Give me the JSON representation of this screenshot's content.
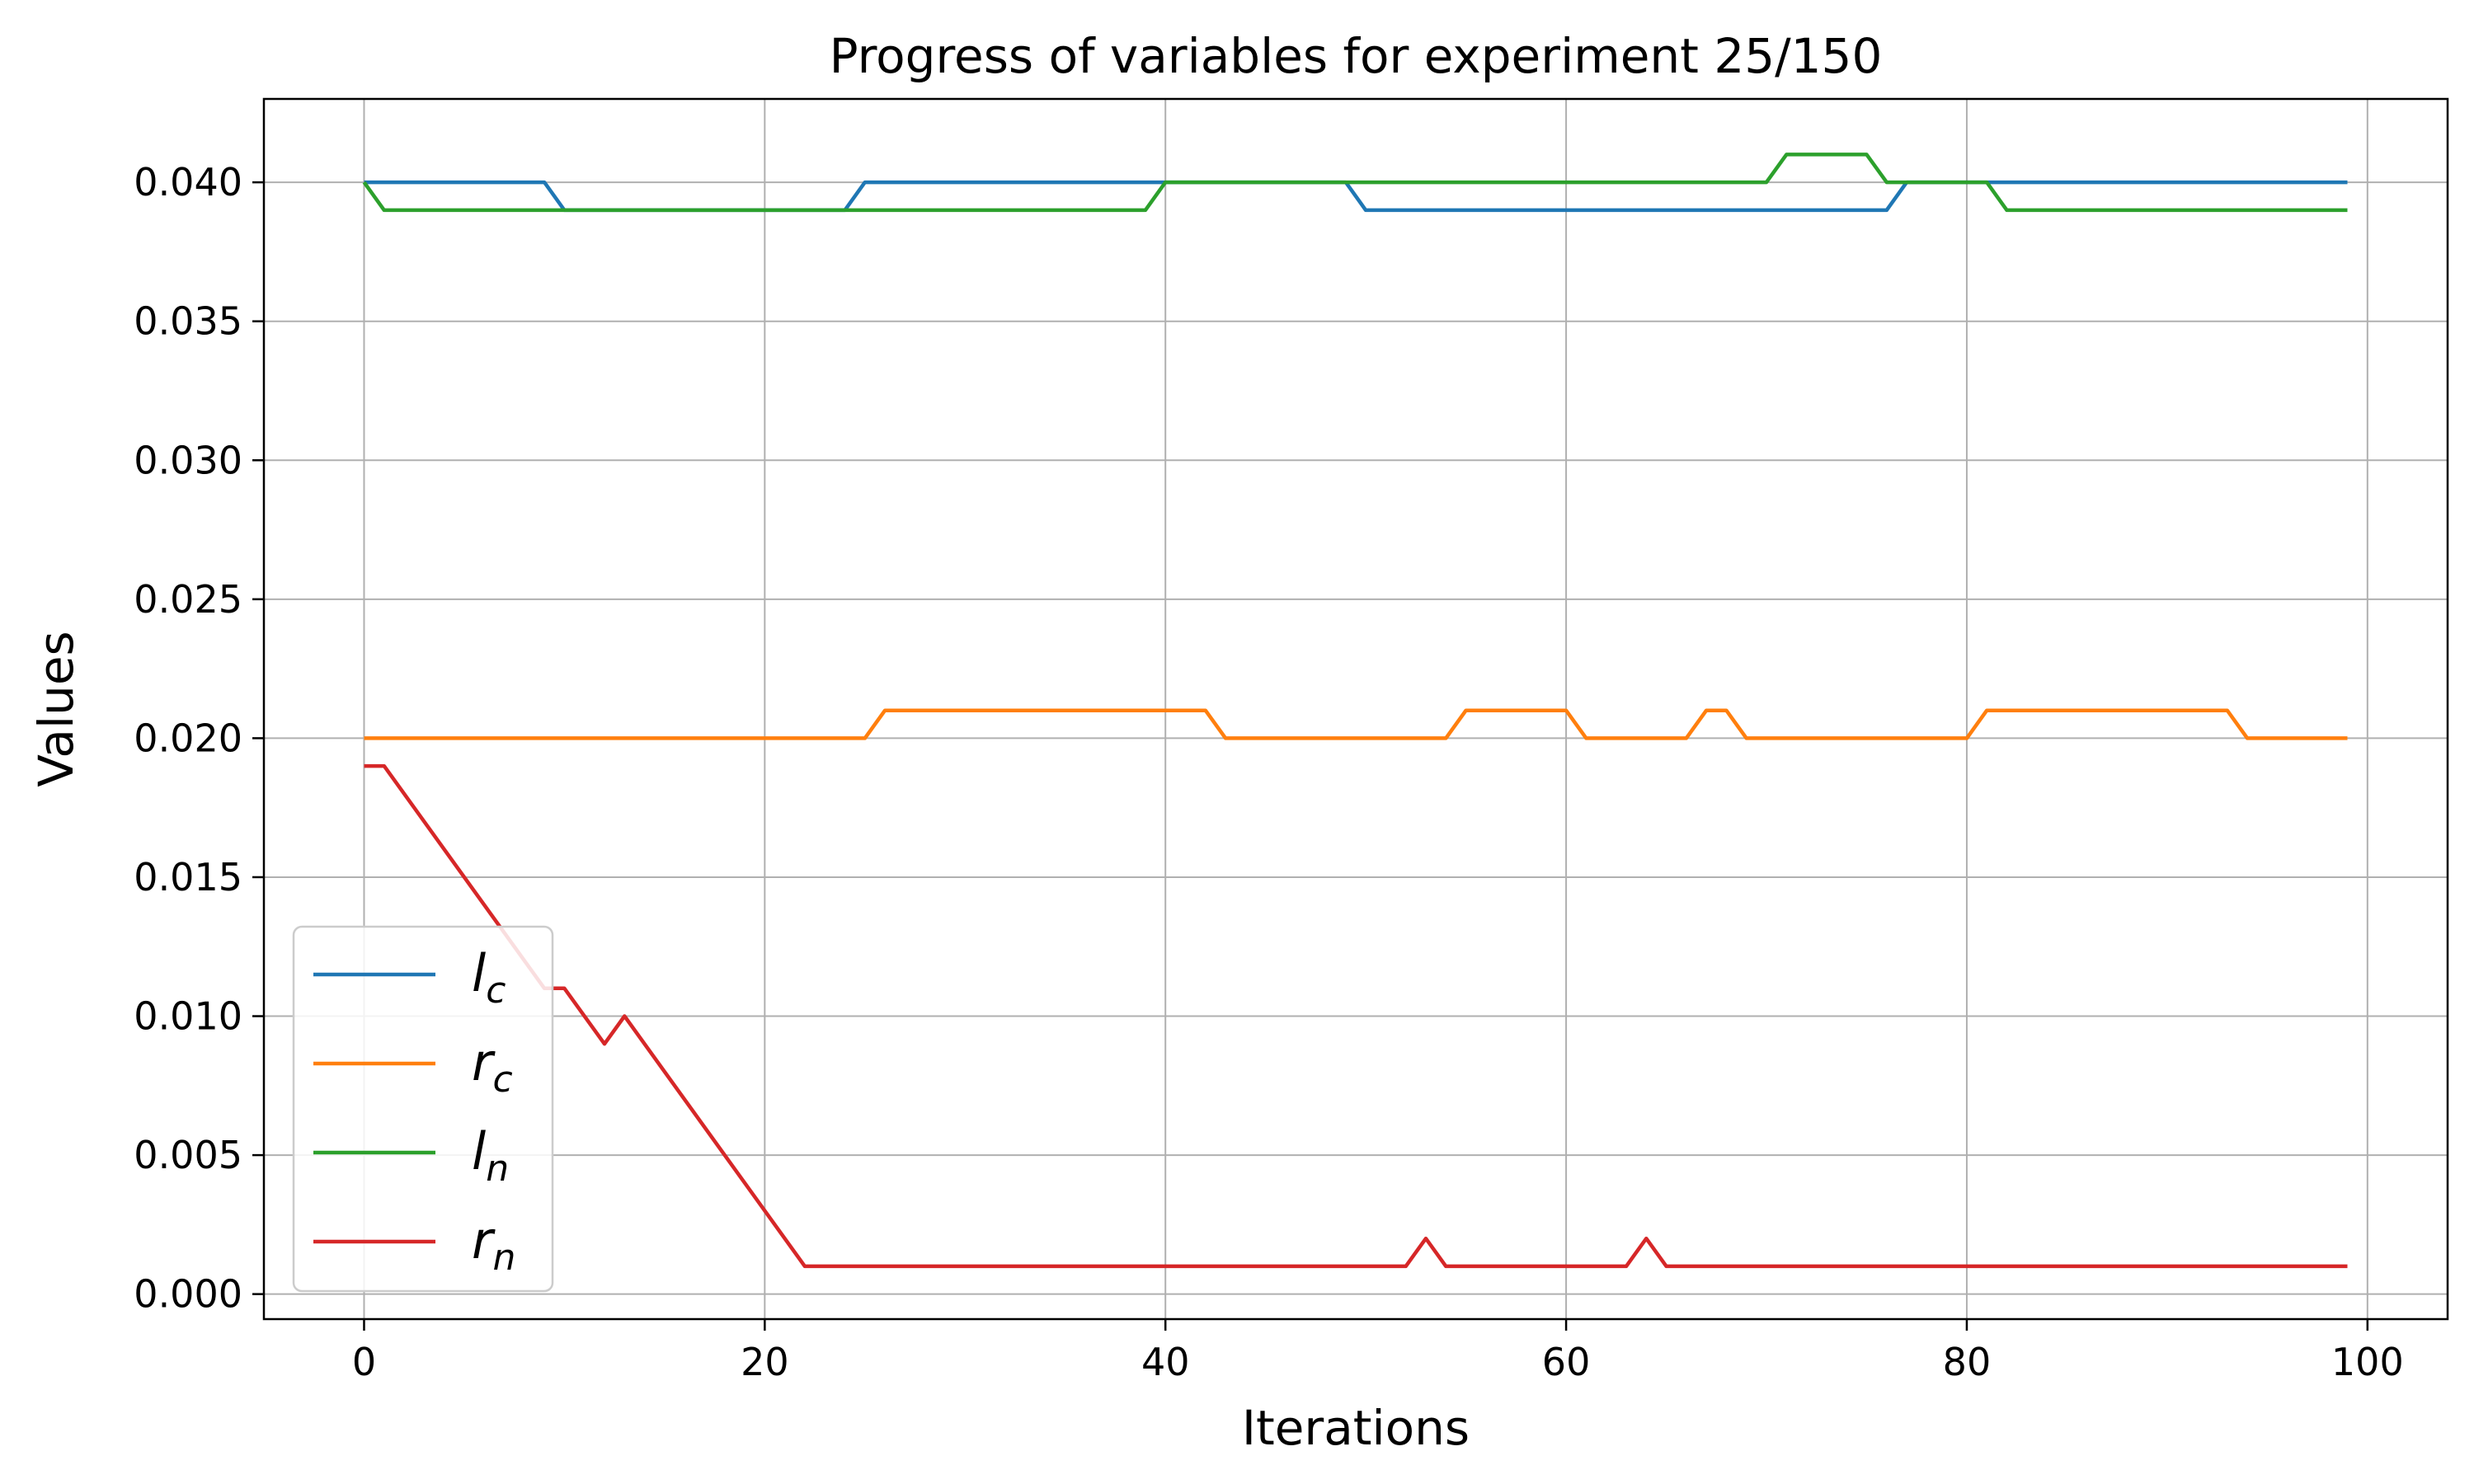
{
  "chart_data": {
    "type": "line",
    "title": "Progress of variables for experiment 25/150",
    "xlabel": "Iterations",
    "ylabel": "Values",
    "xlim": [
      -5,
      104
    ],
    "ylim": [
      -0.0009,
      0.043
    ],
    "xticks": [
      0,
      20,
      40,
      60,
      80,
      100
    ],
    "yticks": [
      0.0,
      0.005,
      0.01,
      0.015,
      0.02,
      0.025,
      0.03,
      0.035,
      0.04
    ],
    "xtick_labels": [
      "0",
      "20",
      "40",
      "60",
      "80",
      "100"
    ],
    "ytick_labels": [
      "0.000",
      "0.005",
      "0.010",
      "0.015",
      "0.020",
      "0.025",
      "0.030",
      "0.035",
      "0.040"
    ],
    "grid": true,
    "legend_position": "lower-left",
    "series": [
      {
        "name": "l_c",
        "legend_base": "l",
        "legend_sub": "c",
        "color": "#1f77b4",
        "points": [
          [
            0,
            0.04
          ],
          [
            9,
            0.04
          ],
          [
            10,
            0.039
          ],
          [
            24,
            0.039
          ],
          [
            25,
            0.04
          ],
          [
            49,
            0.04
          ],
          [
            50,
            0.039
          ],
          [
            76,
            0.039
          ],
          [
            77,
            0.04
          ],
          [
            99,
            0.04
          ]
        ]
      },
      {
        "name": "r_c",
        "legend_base": "r",
        "legend_sub": "c",
        "color": "#ff7f0e",
        "points": [
          [
            0,
            0.02
          ],
          [
            25,
            0.02
          ],
          [
            26,
            0.021
          ],
          [
            42,
            0.021
          ],
          [
            43,
            0.02
          ],
          [
            54,
            0.02
          ],
          [
            55,
            0.021
          ],
          [
            60,
            0.021
          ],
          [
            61,
            0.02
          ],
          [
            66,
            0.02
          ],
          [
            67,
            0.021
          ],
          [
            68,
            0.021
          ],
          [
            69,
            0.02
          ],
          [
            80,
            0.02
          ],
          [
            81,
            0.021
          ],
          [
            93,
            0.021
          ],
          [
            94,
            0.02
          ],
          [
            99,
            0.02
          ]
        ]
      },
      {
        "name": "l_n",
        "legend_base": "l",
        "legend_sub": "n",
        "color": "#2ca02c",
        "points": [
          [
            0,
            0.04
          ],
          [
            1,
            0.039
          ],
          [
            39,
            0.039
          ],
          [
            40,
            0.04
          ],
          [
            70,
            0.04
          ],
          [
            71,
            0.041
          ],
          [
            75,
            0.041
          ],
          [
            76,
            0.04
          ],
          [
            81,
            0.04
          ],
          [
            82,
            0.039
          ],
          [
            99,
            0.039
          ]
        ]
      },
      {
        "name": "r_n",
        "legend_base": "r",
        "legend_sub": "n",
        "color": "#d62728",
        "points": [
          [
            0,
            0.019
          ],
          [
            1,
            0.019
          ],
          [
            9,
            0.011
          ],
          [
            10,
            0.011
          ],
          [
            12,
            0.009
          ],
          [
            13,
            0.01
          ],
          [
            22,
            0.001
          ],
          [
            52,
            0.001
          ],
          [
            53,
            0.002
          ],
          [
            54,
            0.001
          ],
          [
            63,
            0.001
          ],
          [
            64,
            0.002
          ],
          [
            65,
            0.001
          ],
          [
            99,
            0.001
          ]
        ]
      }
    ]
  }
}
